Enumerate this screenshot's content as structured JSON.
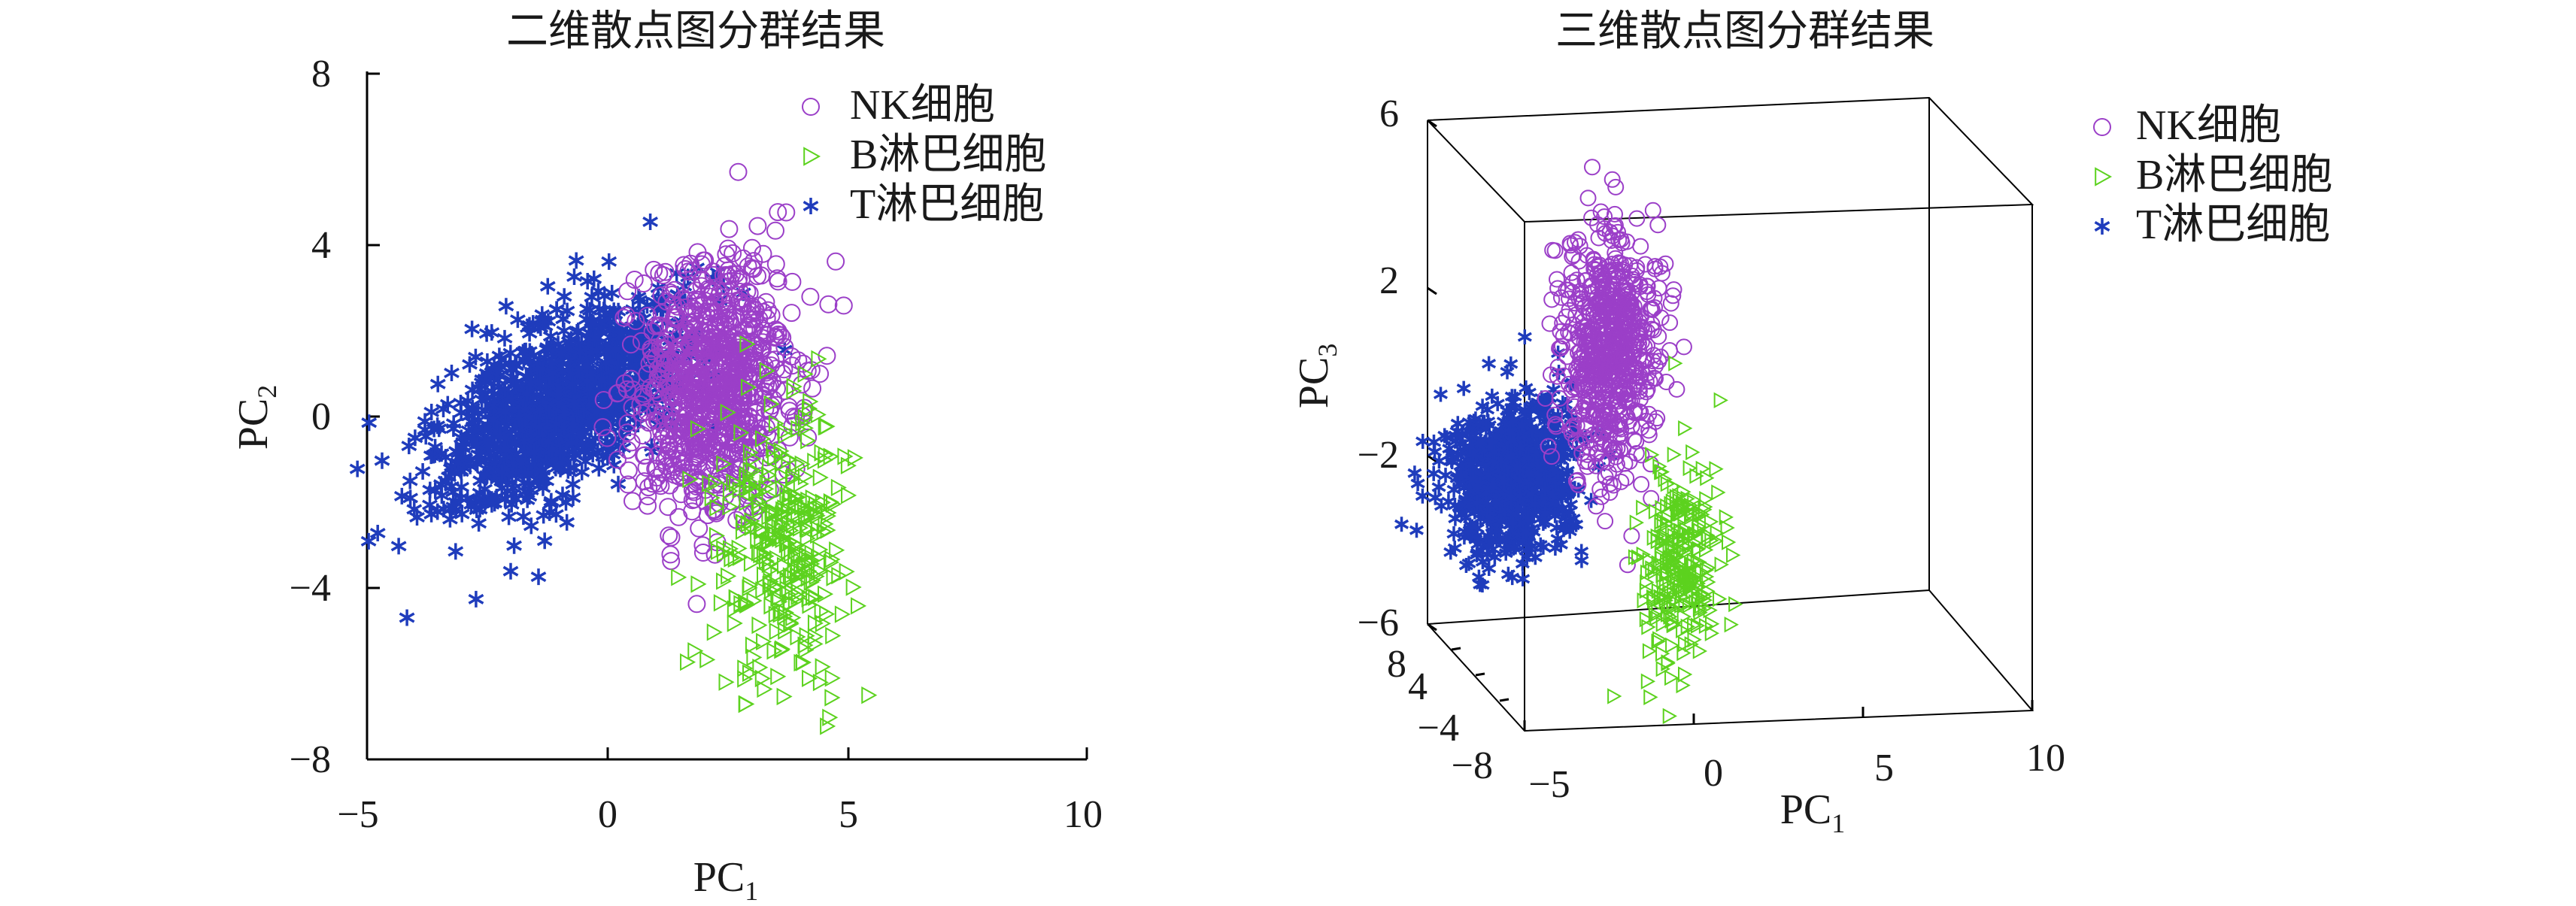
{
  "chart_data": [
    {
      "type": "scatter",
      "title": "二维散点图分群结果",
      "xlabel": "PC",
      "xlabel_sub": "1",
      "ylabel": "PC",
      "ylabel_sub": "2",
      "xlim": [
        -5,
        10
      ],
      "ylim": [
        -8,
        8
      ],
      "xticks": [
        -5,
        0,
        5,
        10
      ],
      "yticks": [
        -8,
        -4,
        0,
        4,
        8
      ],
      "xtick_labels": [
        "−5",
        "0",
        "5",
        "10"
      ],
      "ytick_labels": [
        "−8",
        "−4",
        "0",
        "4",
        "8"
      ],
      "legend_position": "top-right",
      "series": [
        {
          "name": "NK细胞",
          "marker": "circle",
          "color": "#9B3FC8",
          "center": [
            2.2,
            0.8
          ],
          "spread": [
            0.8,
            1.5
          ],
          "count": 900
        },
        {
          "name": "B淋巴细胞",
          "marker": "triangle-right",
          "color": "#5CD21E",
          "center": [
            3.7,
            -3.0
          ],
          "spread": [
            0.7,
            1.6
          ],
          "count": 320
        },
        {
          "name": "T淋巴细胞",
          "marker": "asterisk",
          "color": "#1F3CBC",
          "center": [
            -1.0,
            0.3
          ],
          "spread": [
            1.3,
            1.0
          ],
          "count": 1100
        }
      ]
    },
    {
      "type": "scatter",
      "title": "三维散点图分群结果",
      "xlabel": "PC",
      "xlabel_sub": "1",
      "zlabel": "PC",
      "zlabel_sub": "3",
      "xlim": [
        -5,
        10
      ],
      "ylim": [
        -8,
        8
      ],
      "zlim": [
        -6,
        6
      ],
      "xticks": [
        -5,
        0,
        5,
        10
      ],
      "zticks": [
        -6,
        -2,
        2,
        6
      ],
      "xtick_labels": [
        "−5",
        "0",
        "5",
        "10"
      ],
      "ytick_labels": [
        "8",
        "4",
        "−4",
        "−8"
      ],
      "ztick_labels": [
        "−6",
        "−2",
        "2",
        "6"
      ],
      "legend_position": "top-right",
      "series": [
        {
          "name": "NK细胞",
          "marker": "circle",
          "color": "#9B3FC8",
          "center": [
            0.0,
            1.4
          ],
          "spread": [
            0.7,
            1.4
          ],
          "count": 700
        },
        {
          "name": "B淋巴细胞",
          "marker": "triangle-right",
          "color": "#5CD21E",
          "center": [
            2.0,
            -3.7
          ],
          "spread": [
            0.6,
            1.2
          ],
          "count": 260
        },
        {
          "name": "T淋巴细胞",
          "marker": "asterisk",
          "color": "#1F3CBC",
          "center": [
            -2.9,
            -1.5
          ],
          "spread": [
            1.0,
            0.9
          ],
          "count": 800
        }
      ]
    }
  ]
}
